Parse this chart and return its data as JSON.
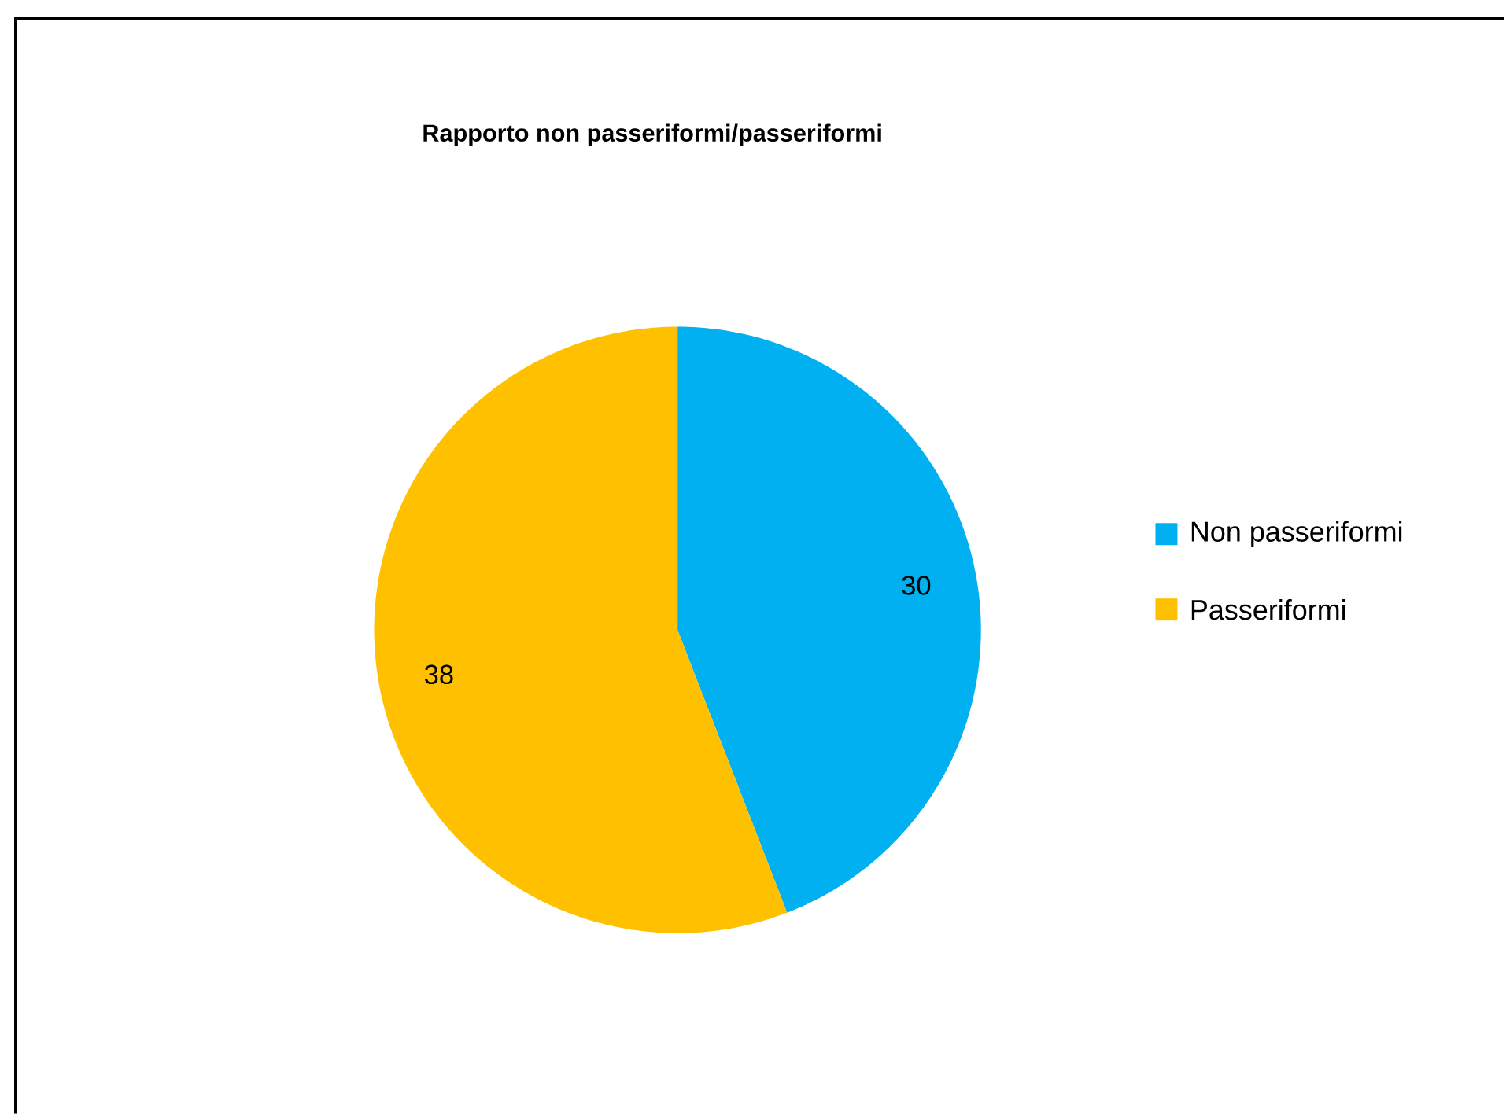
{
  "chart_data": {
    "type": "pie",
    "title": "Rapporto non passeriformi/passeriformi",
    "categories": [
      "Non passeriformi",
      "Passeriformi"
    ],
    "values": [
      30,
      38
    ],
    "colors": [
      "#00b0f0",
      "#ffc000"
    ],
    "data_labels": true,
    "legend": "right"
  }
}
